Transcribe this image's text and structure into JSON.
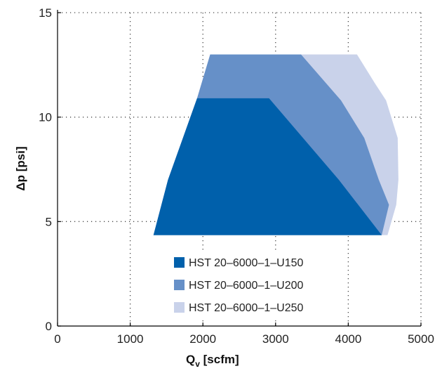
{
  "chart_data": {
    "type": "area",
    "title": "",
    "xlabel_main": "Q",
    "xlabel_sub": "v",
    "xlabel_unit": " [scfm]",
    "ylabel": "Δp [psi]",
    "xlim": [
      0,
      5000
    ],
    "ylim": [
      0,
      15
    ],
    "xticks": [
      0,
      1000,
      2000,
      3000,
      4000,
      5000
    ],
    "yticks": [
      0,
      5,
      10,
      15
    ],
    "xtick_labels": [
      "0",
      "1000",
      "2000",
      "3000",
      "4000",
      "5000"
    ],
    "ytick_labels": [
      "0",
      "5",
      "10",
      "15"
    ],
    "grid": true,
    "legend_position": "bottom-center",
    "series": [
      {
        "name": "HST 20–6000–1–U250",
        "color": "#c9d2ea",
        "points": [
          [
            2100,
            13
          ],
          [
            4120,
            13
          ],
          [
            4370,
            11.6
          ],
          [
            4520,
            10.8
          ],
          [
            4680,
            9.0
          ],
          [
            4690,
            7.0
          ],
          [
            4660,
            5.8
          ],
          [
            4540,
            4.35
          ],
          [
            1320,
            4.35
          ],
          [
            1520,
            7.0
          ],
          [
            1920,
            10.9
          ]
        ]
      },
      {
        "name": "HST 20–6000–1–U200",
        "color": "#6690c8",
        "points": [
          [
            2100,
            13
          ],
          [
            3350,
            13
          ],
          [
            3900,
            10.8
          ],
          [
            4220,
            9.0
          ],
          [
            4420,
            7.0
          ],
          [
            4560,
            5.8
          ],
          [
            4460,
            4.35
          ],
          [
            1320,
            4.35
          ],
          [
            1520,
            7.0
          ],
          [
            1920,
            10.9
          ]
        ]
      },
      {
        "name": "HST 20–6000–1–U150",
        "color": "#0060ab",
        "points": [
          [
            1920,
            10.9
          ],
          [
            2910,
            10.9
          ],
          [
            3870,
            7.0
          ],
          [
            4460,
            4.35
          ],
          [
            1320,
            4.35
          ],
          [
            1520,
            7.0
          ]
        ]
      }
    ],
    "legend_order": [
      "HST 20–6000–1–U150",
      "HST 20–6000–1–U200",
      "HST 20–6000–1–U250"
    ]
  }
}
